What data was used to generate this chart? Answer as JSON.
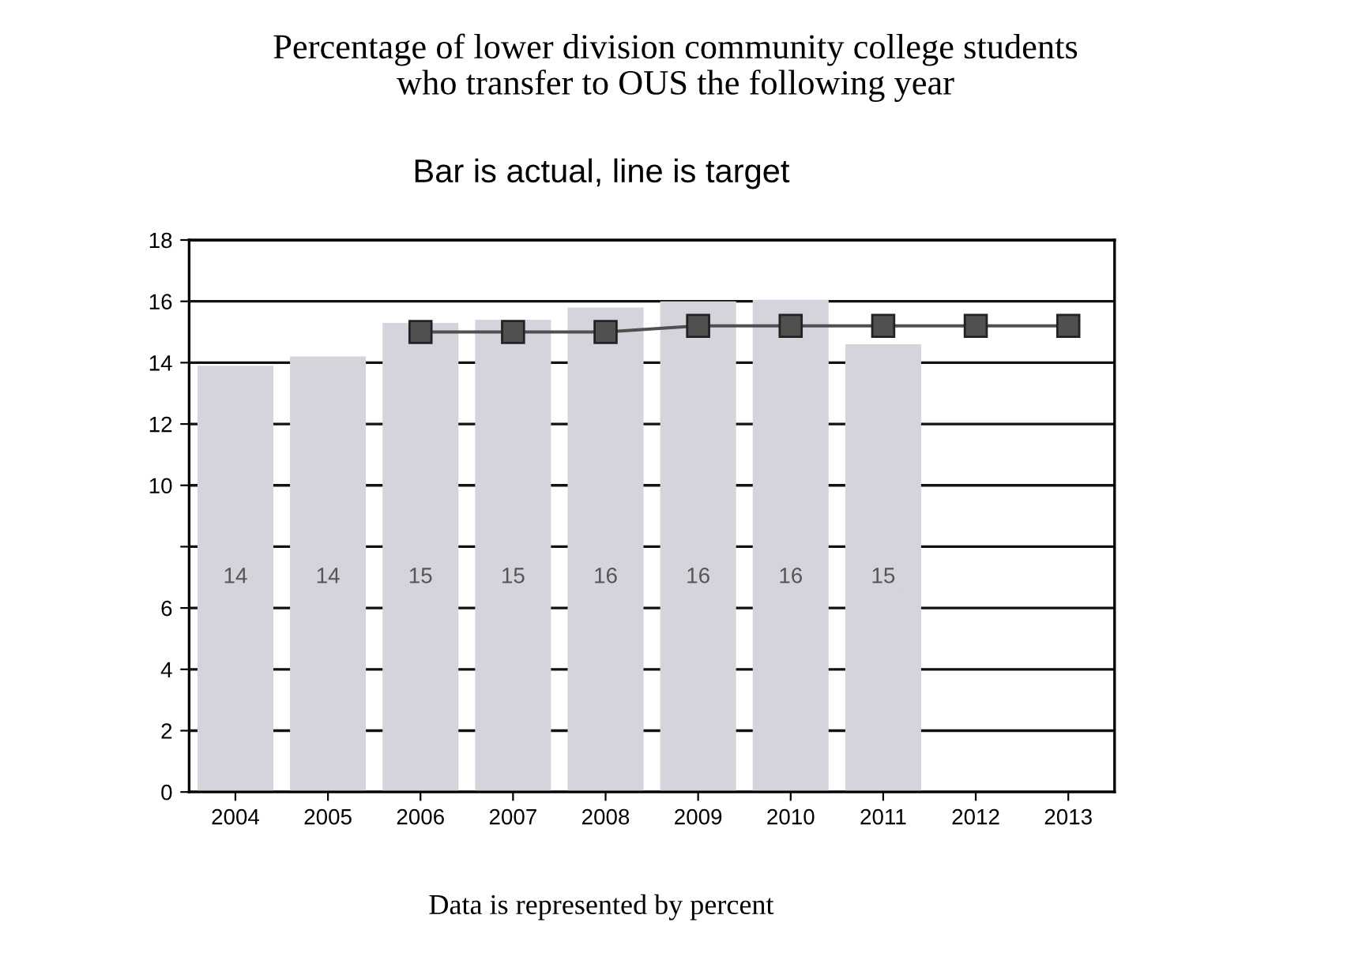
{
  "chart_data": {
    "type": "bar",
    "title": "Percentage of lower division community college students\nwho transfer to OUS the following year",
    "subtitle": "Bar is actual, line is target",
    "categories": [
      "2004",
      "2005",
      "2006",
      "2007",
      "2008",
      "2009",
      "2010",
      "2011",
      "2012",
      "2013"
    ],
    "series": [
      {
        "color": "#d4d4dc",
        "values": [
          13.9,
          14.2,
          15.3,
          15.4,
          15.8,
          16.0,
          16.05,
          14.6,
          null,
          null
        ],
        "value_labels": [
          "14",
          "14",
          "15",
          "15",
          "16",
          "16",
          "16",
          "15",
          null,
          null
        ]
      },
      {
        "type": "line",
        "color": "#505050",
        "marker": "square",
        "values": [
          null,
          null,
          15.0,
          15.0,
          15.0,
          15.2,
          15.2,
          15.2,
          15.2,
          15.2
        ]
      }
    ],
    "ylim": [
      0,
      18
    ],
    "yticks": [
      0,
      2,
      4,
      6,
      {
        "value": 8,
        "label": null
      },
      10,
      12,
      14,
      16,
      18
    ],
    "grid": "y",
    "legend": false,
    "annotations": [
      "Data is represented by percent"
    ]
  }
}
